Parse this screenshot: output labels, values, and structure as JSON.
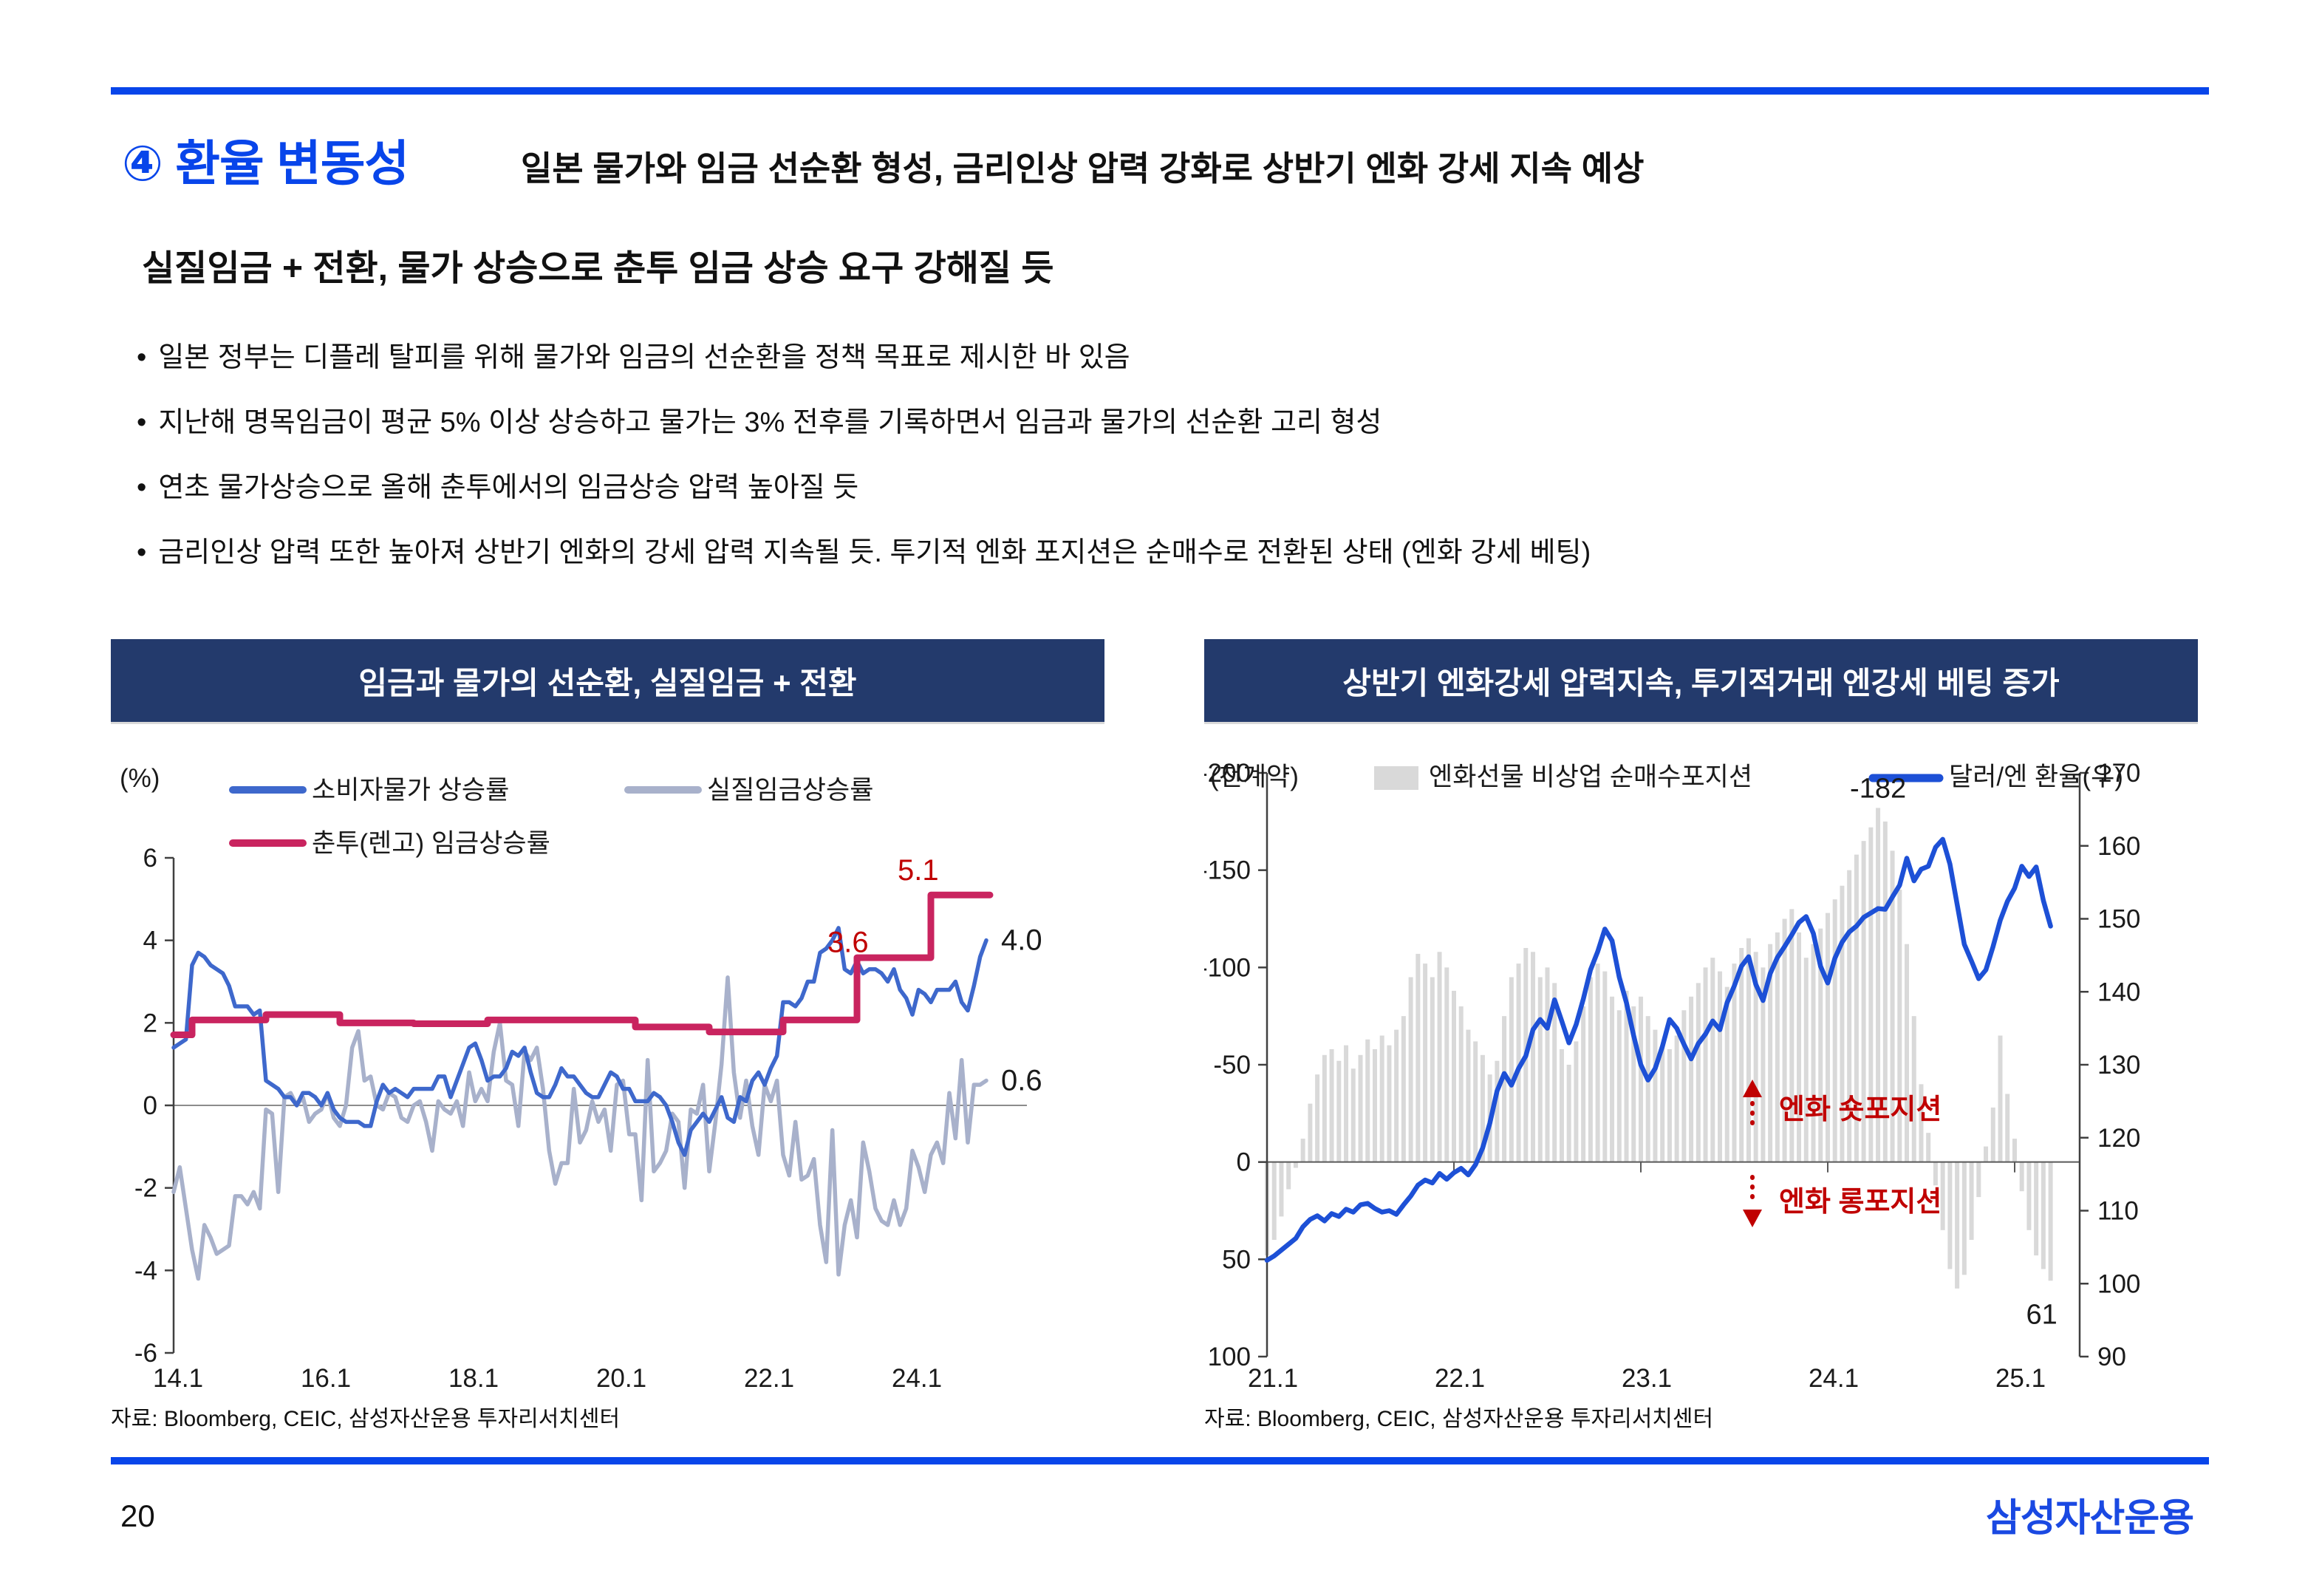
{
  "slide": {
    "page_number": "20",
    "logo": "삼성자산운용",
    "header": {
      "badge": "④ 환율 변동성",
      "title": "일본 물가와 임금 선순환 형성, 금리인상 압력 강화로 상반기 엔화 강세 지속 예상",
      "subtitle": "실질임금 + 전환, 물가 상승으로 춘투 임금 상승 요구 강해질 듯"
    },
    "bullets": [
      "일본 정부는 디플레 탈피를 위해 물가와 임금의 선순환을 정책 목표로 제시한 바 있음",
      "지난해 명목임금이 평균 5% 이상 상승하고 물가는 3% 전후를 기록하면서 임금과 물가의 선순환 고리 형성",
      "연초 물가상승으로 올해 춘투에서의 임금상승 압력 높아질 듯",
      "금리인상 압력 또한 높아져 상반기 엔화의 강세 압력 지속될 듯. 투기적 엔화 포지션은 순매수로 전환된 상태 (엔화 강세 베팅)"
    ],
    "colors": {
      "accent_blue": "#0845ea",
      "panel_navy": "#233a6c",
      "cpi_blue": "#3e68cc",
      "real_wage_gray": "#a8b1cb",
      "shunto_crimson": "#c9245f",
      "annotation_red": "#c00000",
      "bar_gray": "#d9d9d9",
      "usdjpy_blue": "#1d50d6"
    }
  },
  "panels": {
    "left": {
      "title": "임금과 물가의 선순환, 실질임금 + 전환",
      "source": "자료: Bloomberg, CEIC, 삼성자산운용 투자리서치센터"
    },
    "right": {
      "title": "상반기 엔화강세 압력지속, 투기적거래 엔강세 베팅 증가",
      "source": "자료: Bloomberg, CEIC, 삼성자산운용 투자리서치센터"
    }
  },
  "chart_data": [
    {
      "type": "line",
      "title": "임금과 물가의 선순환, 실질임금 + 전환",
      "unit_label": "(%)",
      "ylim": [
        -6,
        6
      ],
      "y_ticks": [
        6,
        4,
        2,
        0,
        -2,
        -4,
        -6
      ],
      "x_ticks": [
        "14.1",
        "16.1",
        "18.1",
        "20.1",
        "22.1",
        "24.1"
      ],
      "x_tick_years": [
        2014,
        2016,
        2018,
        2020,
        2022,
        2024
      ],
      "x_start": 2014.0,
      "x_step_months": 1,
      "grid": "zero-line-only",
      "legend_position": "top-left-inside",
      "series": [
        {
          "name": "소비자물가 상승률",
          "color": "#3e68cc",
          "style": "line",
          "values": [
            1.4,
            1.5,
            1.6,
            3.4,
            3.7,
            3.6,
            3.4,
            3.3,
            3.2,
            2.9,
            2.4,
            2.4,
            2.4,
            2.2,
            2.3,
            0.6,
            0.5,
            0.4,
            0.2,
            0.2,
            0.0,
            0.3,
            0.3,
            0.2,
            0.0,
            0.3,
            -0.1,
            -0.3,
            -0.4,
            -0.4,
            -0.4,
            -0.5,
            -0.5,
            0.1,
            0.5,
            0.3,
            0.4,
            0.3,
            0.2,
            0.4,
            0.4,
            0.4,
            0.4,
            0.7,
            0.7,
            0.2,
            0.6,
            1.0,
            1.4,
            1.5,
            1.1,
            0.6,
            0.7,
            0.7,
            0.9,
            1.3,
            1.2,
            1.4,
            0.8,
            0.3,
            0.2,
            0.2,
            0.5,
            0.9,
            0.7,
            0.7,
            0.5,
            0.3,
            0.2,
            0.2,
            0.5,
            0.8,
            0.7,
            0.4,
            0.4,
            0.1,
            0.1,
            0.1,
            0.3,
            0.2,
            0.0,
            -0.4,
            -0.9,
            -1.2,
            -0.6,
            -0.4,
            -0.2,
            -0.4,
            -0.1,
            0.2,
            -0.3,
            -0.4,
            0.2,
            0.1,
            0.6,
            0.8,
            0.5,
            0.9,
            1.2,
            2.5,
            2.5,
            2.4,
            2.6,
            3.0,
            3.0,
            3.7,
            3.8,
            4.0,
            4.3,
            3.3,
            3.2,
            3.5,
            3.2,
            3.3,
            3.3,
            3.2,
            3.0,
            3.3,
            2.8,
            2.6,
            2.2,
            2.8,
            2.7,
            2.5,
            2.8,
            2.8,
            2.8,
            3.0,
            2.5,
            2.3,
            2.9,
            3.6,
            4.0
          ]
        },
        {
          "name": "실질임금상승률",
          "color": "#a8b1cb",
          "style": "line",
          "values": [
            -2.1,
            -1.5,
            -2.5,
            -3.5,
            -4.2,
            -2.9,
            -3.2,
            -3.6,
            -3.5,
            -3.4,
            -2.2,
            -2.2,
            -2.4,
            -2.1,
            -2.5,
            -0.1,
            -0.2,
            -2.1,
            0.2,
            0.3,
            0.0,
            0.2,
            -0.4,
            -0.2,
            -0.1,
            0.3,
            -0.3,
            -0.5,
            0.0,
            1.4,
            1.8,
            0.6,
            0.7,
            0.0,
            -0.1,
            0.3,
            0.2,
            -0.3,
            -0.4,
            0.0,
            0.1,
            -0.4,
            -1.1,
            0.1,
            -0.1,
            -0.2,
            0.1,
            -0.5,
            0.8,
            0.1,
            0.4,
            0.1,
            1.3,
            2.0,
            0.6,
            0.5,
            -0.5,
            1.3,
            1.1,
            1.4,
            0.4,
            -1.1,
            -1.9,
            -1.4,
            -1.4,
            0.4,
            -0.9,
            -0.6,
            0.1,
            -0.4,
            -0.1,
            -1.1,
            0.5,
            0.6,
            -0.7,
            -0.7,
            -2.3,
            1.1,
            -1.6,
            -1.4,
            -1.1,
            -0.2,
            -0.4,
            -2.0,
            -0.1,
            -0.2,
            0.5,
            -1.6,
            -0.4,
            1.0,
            3.1,
            0.8,
            -0.3,
            0.6,
            -0.5,
            -1.2,
            0.5,
            0.1,
            0.6,
            -1.2,
            -1.7,
            -0.4,
            -1.8,
            -1.7,
            -1.3,
            -2.9,
            -3.8,
            -0.6,
            -4.1,
            -2.9,
            -2.3,
            -3.2,
            -0.9,
            -1.6,
            -2.5,
            -2.8,
            -2.9,
            -2.3,
            -2.9,
            -2.5,
            -1.1,
            -1.5,
            -2.1,
            -1.2,
            -0.9,
            -1.4,
            0.3,
            -0.8,
            1.1,
            -0.9,
            0.5,
            0.5,
            0.6
          ]
        },
        {
          "name": "춘투(렌고) 임금상승률",
          "color": "#c9245f",
          "style": "step",
          "points": [
            [
              2014.0,
              1.71
            ],
            [
              2014.25,
              2.07
            ],
            [
              2015.25,
              2.2
            ],
            [
              2016.25,
              2.0
            ],
            [
              2017.25,
              1.98
            ],
            [
              2018.25,
              2.07
            ],
            [
              2020.25,
              1.9
            ],
            [
              2021.25,
              1.78
            ],
            [
              2022.25,
              2.07
            ],
            [
              2023.25,
              3.58
            ],
            [
              2024.25,
              5.1
            ],
            [
              2025.05,
              5.1
            ]
          ]
        }
      ],
      "annotations": [
        {
          "text": "3.6",
          "x": 2022.85,
          "y": 3.95,
          "color": "#c00000"
        },
        {
          "text": "5.1",
          "x": 2023.8,
          "y": 5.7,
          "color": "#c00000"
        },
        {
          "text": "4.0",
          "x": 2025.2,
          "y": 4.0,
          "color": "#1a1a1a"
        },
        {
          "text": "0.6",
          "x": 2025.2,
          "y": 0.6,
          "color": "#1a1a1a"
        }
      ]
    },
    {
      "type": "bar+line",
      "title": "상반기 엔화강세 압력지속, 투기적거래 엔강세 베팅 증가",
      "unit_label": "(천계약)",
      "left_axis": {
        "lim": [
          -200,
          100
        ],
        "ticks": [
          -200,
          -150,
          -100,
          -50,
          0,
          50,
          100
        ],
        "inverted": true
      },
      "right_axis": {
        "lim": [
          90,
          170
        ],
        "ticks": [
          170,
          160,
          150,
          140,
          130,
          120,
          110,
          100,
          90
        ]
      },
      "x_ticks": [
        "21.1",
        "22.1",
        "23.1",
        "24.1",
        "25.1"
      ],
      "x_tick_years": [
        2021,
        2022,
        2023,
        2024,
        2025
      ],
      "x_start": 2021.0,
      "x_step": 0.03846,
      "bars": {
        "name": "엔화선물 비상업 순매수포지션",
        "color": "#d9d9d9",
        "values": [
          48,
          40,
          28,
          14,
          3,
          -12,
          -30,
          -45,
          -55,
          -58,
          -52,
          -60,
          -48,
          -55,
          -63,
          -58,
          -65,
          -60,
          -68,
          -75,
          -95,
          -107,
          -102,
          -95,
          -108,
          -100,
          -88,
          -80,
          -68,
          -62,
          -55,
          -45,
          -52,
          -75,
          -95,
          -102,
          -110,
          -108,
          -95,
          -100,
          -92,
          -58,
          -50,
          -62,
          -80,
          -95,
          -102,
          -98,
          -85,
          -78,
          -88,
          -80,
          -85,
          -75,
          -68,
          -60,
          -58,
          -65,
          -78,
          -85,
          -92,
          -100,
          -105,
          -98,
          -90,
          -102,
          -110,
          -115,
          -108,
          -100,
          -112,
          -118,
          -125,
          -130,
          -118,
          -105,
          -112,
          -120,
          -128,
          -135,
          -142,
          -150,
          -158,
          -165,
          -172,
          -182,
          -175,
          -160,
          -140,
          -112,
          -75,
          -40,
          -15,
          12,
          35,
          55,
          65,
          58,
          40,
          18,
          -8,
          -28,
          -65,
          -35,
          -12,
          15,
          35,
          48,
          55,
          61
        ]
      },
      "line": {
        "name": "달러/엔 환율(우)",
        "color": "#1d50d6",
        "values": [
          103.2,
          103.8,
          104.6,
          105.4,
          106.2,
          107.8,
          108.8,
          109.3,
          108.6,
          109.6,
          109.2,
          110.2,
          109.8,
          110.8,
          111.0,
          110.3,
          109.8,
          110.0,
          109.5,
          110.8,
          112.0,
          113.5,
          114.2,
          113.8,
          115.1,
          114.3,
          115.2,
          115.8,
          114.9,
          116.3,
          118.6,
          122.0,
          126.4,
          128.8,
          127.2,
          129.5,
          131.2,
          134.8,
          136.2,
          135.0,
          138.9,
          136.0,
          133.0,
          135.5,
          139.0,
          143.0,
          145.5,
          148.6,
          147.0,
          142.0,
          138.5,
          134.0,
          130.0,
          127.9,
          129.5,
          132.5,
          136.2,
          135.0,
          132.8,
          130.8,
          132.9,
          134.2,
          136.0,
          134.8,
          138.5,
          140.8,
          143.5,
          144.8,
          141.0,
          138.8,
          142.5,
          144.7,
          146.2,
          147.8,
          149.5,
          150.3,
          148.0,
          143.5,
          141.2,
          144.6,
          146.8,
          148.2,
          149.0,
          150.2,
          150.8,
          151.4,
          151.3,
          153.0,
          154.6,
          158.3,
          155.2,
          156.8,
          157.2,
          159.8,
          160.9,
          157.5,
          152.0,
          146.5,
          144.2,
          141.8,
          143.0,
          146.2,
          149.8,
          152.4,
          154.2,
          157.2,
          155.8,
          157.1,
          152.5,
          149.0
        ]
      },
      "annotations": [
        {
          "text": "-182",
          "at": "bar-peak",
          "color": "#1a1a1a"
        },
        {
          "text": "61",
          "at": "bar-last",
          "color": "#1a1a1a"
        }
      ],
      "callouts": [
        {
          "text": "엔화 숏포지션",
          "arrow": "up",
          "color": "#c00000"
        },
        {
          "text": "엔화 롱포지션",
          "arrow": "down",
          "color": "#c00000"
        }
      ]
    }
  ]
}
